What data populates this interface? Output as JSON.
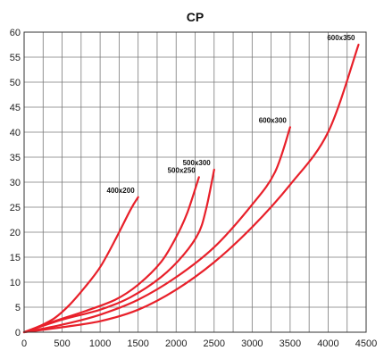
{
  "chart_data": {
    "type": "line",
    "title": "CP",
    "xlabel": "",
    "ylabel": "",
    "xlim": [
      0,
      4500
    ],
    "ylim": [
      0,
      60
    ],
    "x_ticks": [
      0,
      500,
      1000,
      1500,
      2000,
      2500,
      3000,
      3500,
      4000,
      4500
    ],
    "y_ticks": [
      0,
      5,
      10,
      15,
      20,
      25,
      30,
      35,
      40,
      45,
      50,
      55,
      60
    ],
    "grid": true,
    "line_color": "#e8202a",
    "grid_color": "#7a7a7a",
    "series": [
      {
        "name": "400x200",
        "x": [
          0,
          200,
          400,
          600,
          800,
          1000,
          1200,
          1400,
          1500
        ],
        "y": [
          0,
          1.2,
          2.8,
          5.5,
          9.0,
          13.0,
          18.5,
          24.5,
          27.0
        ]
      },
      {
        "name": "500x250",
        "x": [
          0,
          400,
          800,
          1200,
          1500,
          1800,
          2000,
          2150,
          2300
        ],
        "y": [
          0,
          2.2,
          4.2,
          6.5,
          9.5,
          14.0,
          19.0,
          24.0,
          31.0
        ]
      },
      {
        "name": "500x300",
        "x": [
          0,
          500,
          1000,
          1400,
          1800,
          2100,
          2300,
          2400,
          2500
        ],
        "y": [
          0,
          2.5,
          4.5,
          7.0,
          11.0,
          15.5,
          20.0,
          25.0,
          32.5
        ]
      },
      {
        "name": "600x300",
        "x": [
          0,
          500,
          1000,
          1500,
          2000,
          2500,
          3000,
          3300,
          3500
        ],
        "y": [
          0,
          1.5,
          3.5,
          6.5,
          11.0,
          17.0,
          25.5,
          32.0,
          41.0
        ]
      },
      {
        "name": "600x350",
        "x": [
          0,
          500,
          1000,
          1500,
          2000,
          2500,
          3000,
          3500,
          4000,
          4400
        ],
        "y": [
          0,
          1.0,
          2.2,
          4.5,
          8.5,
          14.0,
          21.0,
          29.5,
          40.0,
          57.5
        ]
      }
    ]
  }
}
